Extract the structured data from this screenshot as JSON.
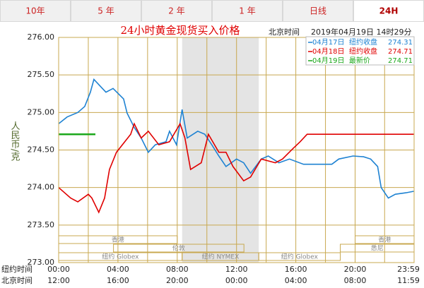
{
  "tabs": [
    "10年",
    "5 年",
    "2 年",
    "1 年",
    "日线",
    "24H"
  ],
  "active_tab": 5,
  "chart_data": {
    "type": "line",
    "title": "24小时黄金现货买入价格",
    "time_label": "北京时间",
    "timestamp": "2019年04月19日 14时29分",
    "ylabel": "人民币/克",
    "ylim": [
      273,
      276
    ],
    "yticks": [
      {
        "value": 276,
        "label": "276.00"
      },
      {
        "value": 275.5,
        "label": "275.50"
      },
      {
        "value": 275,
        "label": "275.00"
      },
      {
        "value": 274.5,
        "label": "274.50"
      },
      {
        "value": 274,
        "label": "274.00"
      },
      {
        "value": 273.5,
        "label": "273.50"
      },
      {
        "value": 273,
        "label": "273.00"
      }
    ],
    "xlim": [
      0,
      23.98
    ],
    "xticks_label": "纽约时间",
    "xticks": [
      {
        "value": 0,
        "label": "00:00"
      },
      {
        "value": 4,
        "label": "04:00"
      },
      {
        "value": 8,
        "label": "08:00"
      },
      {
        "value": 12,
        "label": "12:00"
      },
      {
        "value": 16,
        "label": "16:00"
      },
      {
        "value": 20,
        "label": "20:00"
      },
      {
        "value": 23.98,
        "label": "23:59"
      }
    ],
    "xticks2_label": "北京时间",
    "xticks2": [
      {
        "value": 0,
        "label": "12:00"
      },
      {
        "value": 4,
        "label": "16:00"
      },
      {
        "value": 8,
        "label": "20:00"
      },
      {
        "value": 12,
        "label": "00:00"
      },
      {
        "value": 16,
        "label": "04:00"
      },
      {
        "value": 20,
        "label": "08:00"
      },
      {
        "value": 23.98,
        "label": "11:59"
      }
    ],
    "grid": true,
    "shade": [
      8.33,
      13.5
    ],
    "session_rows": [
      [
        {
          "label": "香港",
          "start": 0,
          "end": 8
        },
        {
          "label": "香港",
          "start": 20,
          "end": 23.98
        }
      ],
      [
        {
          "label": "伦敦",
          "start": 3.7,
          "end": 12.5
        },
        {
          "label": "悉尼",
          "start": 19,
          "end": 23.98
        }
      ],
      [
        {
          "label": "纽约 Globex",
          "start": 0,
          "end": 8.33
        },
        {
          "label": "纽约 NYMEX",
          "start": 8.33,
          "end": 13.5
        },
        {
          "label": "纽约 Globex",
          "start": 13.5,
          "end": 19
        }
      ]
    ],
    "series": [
      {
        "name": "04月17日",
        "note": "纽约收盘",
        "last": 274.31,
        "color": "#1e82d2",
        "x": [
          0,
          0.57,
          1.29,
          1.76,
          2.14,
          2.38,
          2.95,
          3.19,
          3.67,
          4.38,
          4.62,
          5.1,
          5.57,
          6.05,
          6.52,
          7.24,
          7.48,
          7.95,
          8.33,
          8.67,
          9.38,
          9.86,
          10.33,
          10.81,
          11.29,
          12.0,
          12.48,
          12.95,
          13.67,
          14.14,
          14.86,
          15.57,
          16.52,
          17.95,
          18.43,
          18.9,
          19.86,
          20.57,
          21.05,
          21.52,
          21.76,
          22.24,
          22.71,
          23.43,
          23.95
        ],
        "values": [
          274.85,
          274.94,
          275.0,
          275.08,
          275.27,
          275.44,
          275.32,
          275.27,
          275.32,
          275.18,
          274.99,
          274.8,
          274.66,
          274.47,
          274.57,
          274.61,
          274.75,
          274.57,
          275.04,
          274.66,
          274.75,
          274.71,
          274.57,
          274.42,
          274.28,
          274.38,
          274.33,
          274.19,
          274.38,
          274.42,
          274.33,
          274.38,
          274.31,
          274.31,
          274.31,
          274.38,
          274.42,
          274.41,
          274.38,
          274.28,
          274.0,
          273.86,
          273.91,
          273.93,
          273.95
        ]
      },
      {
        "name": "04月18日",
        "note": "纽约收盘",
        "last": 274.71,
        "color": "#e00000",
        "x": [
          0,
          0.81,
          1.29,
          2.0,
          2.24,
          2.71,
          3.1,
          3.43,
          3.9,
          4.86,
          5.1,
          5.57,
          6.05,
          6.76,
          7.48,
          8.19,
          8.52,
          8.9,
          9.62,
          10.1,
          10.81,
          11.29,
          11.76,
          12.48,
          12.95,
          13.67,
          14.62,
          15.1,
          15.81,
          16.29,
          16.76,
          23.95
        ],
        "values": [
          274.0,
          273.86,
          273.81,
          273.91,
          273.86,
          273.67,
          273.86,
          274.24,
          274.47,
          274.71,
          274.85,
          274.66,
          274.75,
          274.57,
          274.61,
          274.85,
          274.66,
          274.24,
          274.33,
          274.71,
          274.47,
          274.47,
          274.28,
          274.09,
          274.14,
          274.38,
          274.33,
          274.38,
          274.52,
          274.61,
          274.71,
          274.71
        ]
      },
      {
        "name": "04月19日",
        "note": "最新价",
        "last": 274.71,
        "color": "#1ca81c",
        "x": [
          0,
          2.48
        ],
        "values": [
          274.71,
          274.71
        ]
      }
    ]
  }
}
